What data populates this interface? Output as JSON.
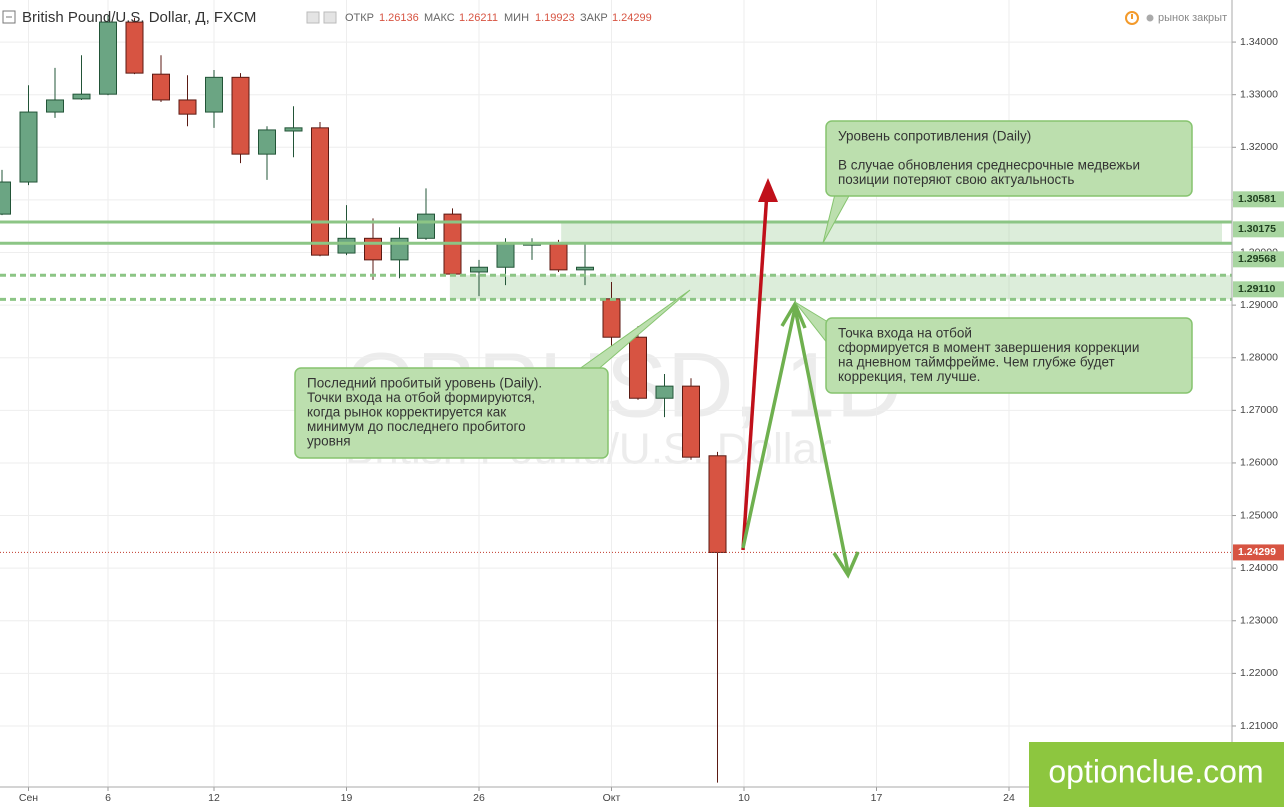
{
  "chart_data": {
    "type": "candlestick",
    "title": "British Pound/U.S. Dollar, Д, FXCM",
    "header_labels": [
      "ОТКР",
      "МАКС",
      "МИН",
      "ЗАКР"
    ],
    "status": "рынок закрыт",
    "watermark": [
      "GBPUSD, 1D",
      "British Pound/U.S. Dollar"
    ],
    "site": "optionclue.com",
    "categories": [
      null,
      "Сен",
      null,
      null,
      "6",
      null,
      null,
      null,
      "12",
      null,
      null,
      null,
      null,
      "19",
      null,
      null,
      null,
      null,
      "26",
      null,
      null,
      null,
      null,
      "Окт",
      null,
      null,
      null,
      null,
      "10",
      null,
      null,
      null,
      null,
      "17",
      null,
      null,
      null,
      null,
      "24",
      null,
      null,
      null,
      null,
      null,
      null,
      null,
      null
    ],
    "open": [
      1.3073,
      1.3134,
      1.3267,
      1.3292,
      1.3301,
      1.3438,
      1.3339,
      1.329,
      1.3267,
      1.3333,
      1.3187,
      1.3231,
      1.3237,
      1.2999,
      1.3027,
      1.2986,
      1.3027,
      1.3073,
      1.2963,
      1.2972,
      1.3014,
      1.3016,
      1.2967,
      1.2912,
      1.2839,
      1.2723,
      1.2746,
      1.26136,
      null,
      null,
      null,
      null,
      null,
      null,
      null,
      null,
      null,
      null,
      null,
      null,
      null,
      null,
      null,
      null,
      null,
      null,
      null
    ],
    "high": [
      1.3157,
      1.3318,
      1.3351,
      1.3375,
      1.3451,
      1.3446,
      1.3375,
      1.3337,
      1.3347,
      1.3341,
      1.324,
      1.3278,
      1.3248,
      1.309,
      1.3065,
      1.3048,
      1.3122,
      1.3084,
      1.2986,
      1.3027,
      1.3027,
      1.3024,
      1.3016,
      1.2944,
      1.286,
      1.2769,
      1.2761,
      1.26211,
      null,
      null,
      null,
      null,
      null,
      null,
      null,
      null,
      null,
      null,
      null,
      null,
      null,
      null,
      null,
      null,
      null,
      null,
      null
    ],
    "low": [
      1.3071,
      1.3128,
      1.3256,
      1.329,
      1.3299,
      1.3339,
      1.3286,
      1.324,
      1.3237,
      1.317,
      1.3138,
      1.3181,
      1.2993,
      1.2995,
      1.2948,
      1.2951,
      1.3024,
      1.2955,
      1.2917,
      1.2938,
      1.2986,
      1.2963,
      1.2938,
      1.2818,
      1.272,
      1.2687,
      1.2606,
      1.19923,
      null,
      null,
      null,
      null,
      null,
      null,
      null,
      null,
      null,
      null,
      null,
      null,
      null,
      null,
      null,
      null,
      null,
      null,
      null
    ],
    "close": [
      1.3134,
      1.3267,
      1.329,
      1.3301,
      1.3438,
      1.3341,
      1.329,
      1.3263,
      1.3333,
      1.3187,
      1.3233,
      1.3237,
      1.2995,
      1.3027,
      1.2986,
      1.3027,
      1.3073,
      1.2959,
      1.2972,
      1.3018,
      1.3018,
      1.2967,
      1.2972,
      1.2839,
      1.2723,
      1.2746,
      1.2611,
      1.24299,
      null,
      null,
      null,
      null,
      null,
      null,
      null,
      null,
      null,
      null,
      null,
      null,
      null,
      null,
      null,
      null,
      null,
      null,
      null
    ],
    "up_color": "#6ba583",
    "down_color": "#d75442",
    "ylim": [
      1.1984,
      1.348
    ],
    "yticks": [
      {
        "value": 1.34,
        "label": "1.34000"
      },
      {
        "value": 1.33,
        "label": "1.33000"
      },
      {
        "value": 1.32,
        "label": "1.32000"
      },
      {
        "value": 1.31,
        "label": "1.31000"
      },
      {
        "value": 1.3,
        "label": "1.30000"
      },
      {
        "value": 1.29,
        "label": "1.29000"
      },
      {
        "value": 1.28,
        "label": "1.28000"
      },
      {
        "value": 1.27,
        "label": "1.27000"
      },
      {
        "value": 1.26,
        "label": "1.26000"
      },
      {
        "value": 1.25,
        "label": "1.25000"
      },
      {
        "value": 1.24,
        "label": "1.24000"
      },
      {
        "value": 1.23,
        "label": "1.23000"
      },
      {
        "value": 1.22,
        "label": "1.22000"
      },
      {
        "value": 1.21,
        "label": "1.21000"
      }
    ],
    "grid": true,
    "levels": [
      {
        "value": 1.30581,
        "label": "1.30581",
        "style": "solid"
      },
      {
        "value": 1.30175,
        "label": "1.30175",
        "style": "solid"
      },
      {
        "value": 1.29568,
        "label": "1.29568",
        "style": "dashed"
      },
      {
        "value": 1.2911,
        "label": "1.29110",
        "style": "dashed"
      }
    ],
    "level_color": "#8cc585",
    "annotations": [
      {
        "lines": [
          "Уровень сопротивления (Daily)",
          "",
          "В случае обновления среднесрочные медвежьи",
          "позиции потеряют свою актуальность"
        ]
      },
      {
        "lines": [
          "Точка входа на отбой",
          "сформируется в момент завершения коррекции",
          "на дневном таймфрейме. Чем глубже будет",
          "коррекция, тем лучше."
        ]
      },
      {
        "lines": [
          "Последний пробитый уровень (Daily).",
          "Точки входа на отбой формируются,",
          "когда рынок корректируется как",
          "минимум до последнего пробитого",
          "уровня"
        ]
      }
    ]
  }
}
